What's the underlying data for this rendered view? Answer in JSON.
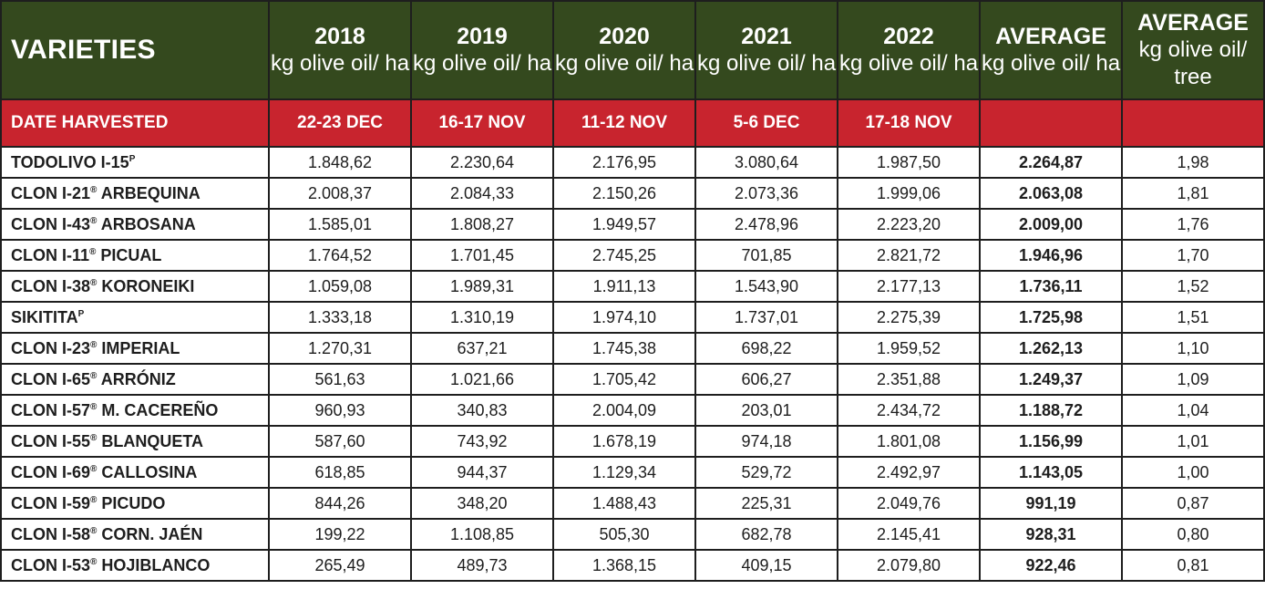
{
  "header": {
    "first": "VARIETIES",
    "columns": [
      {
        "year": "2018",
        "unit": "kg olive oil/ ha"
      },
      {
        "year": "2019",
        "unit": "kg olive oil/ ha"
      },
      {
        "year": "2020",
        "unit": "kg olive oil/ ha"
      },
      {
        "year": "2021",
        "unit": "kg olive oil/ ha"
      },
      {
        "year": "2022",
        "unit": "kg olive oil/ ha"
      },
      {
        "year": "AVERAGE",
        "unit": "kg olive oil/ ha"
      },
      {
        "year": "AVERAGE",
        "unit": "kg olive oil/ tree"
      }
    ]
  },
  "harvest": {
    "label": "DATE HARVESTED",
    "dates": [
      "22-23 DEC",
      "16-17 NOV",
      "11-12 NOV",
      "5-6 DEC",
      "17-18 NOV",
      "",
      ""
    ]
  },
  "colors": {
    "header_bg": "#34491e",
    "harvest_bg": "#c8242e"
  },
  "rows": [
    {
      "prefix": "TODOLIVO I-15",
      "mark": "P",
      "suffix": "",
      "values": [
        "1.848,62",
        "2.230,64",
        "2.176,95",
        "3.080,64",
        "1.987,50",
        "2.264,87",
        "1,98"
      ]
    },
    {
      "prefix": "CLON I-21",
      "mark": "®",
      "suffix": " ARBEQUINA",
      "values": [
        "2.008,37",
        "2.084,33",
        "2.150,26",
        "2.073,36",
        "1.999,06",
        "2.063,08",
        "1,81"
      ]
    },
    {
      "prefix": "CLON I-43",
      "mark": "®",
      "suffix": " ARBOSANA",
      "values": [
        "1.585,01",
        "1.808,27",
        "1.949,57",
        "2.478,96",
        "2.223,20",
        "2.009,00",
        "1,76"
      ]
    },
    {
      "prefix": "CLON I-11",
      "mark": "®",
      "suffix": " PICUAL",
      "values": [
        "1.764,52",
        "1.701,45",
        "2.745,25",
        "701,85",
        "2.821,72",
        "1.946,96",
        "1,70"
      ]
    },
    {
      "prefix": "CLON I-38",
      "mark": "®",
      "suffix": " KORONEIKI",
      "values": [
        "1.059,08",
        "1.989,31",
        "1.911,13",
        "1.543,90",
        "2.177,13",
        "1.736,11",
        "1,52"
      ]
    },
    {
      "prefix": "SIKITITA",
      "mark": "P",
      "suffix": "",
      "values": [
        "1.333,18",
        "1.310,19",
        "1.974,10",
        "1.737,01",
        "2.275,39",
        "1.725,98",
        "1,51"
      ]
    },
    {
      "prefix": "CLON I-23",
      "mark": "®",
      "suffix": " IMPERIAL",
      "values": [
        "1.270,31",
        "637,21",
        "1.745,38",
        "698,22",
        "1.959,52",
        "1.262,13",
        "1,10"
      ]
    },
    {
      "prefix": "CLON I-65",
      "mark": "®",
      "suffix": " ARRÓNIZ",
      "values": [
        "561,63",
        "1.021,66",
        "1.705,42",
        "606,27",
        "2.351,88",
        "1.249,37",
        "1,09"
      ]
    },
    {
      "prefix": "CLON I-57",
      "mark": "®",
      "suffix": " M. CACEREÑO",
      "values": [
        "960,93",
        "340,83",
        "2.004,09",
        "203,01",
        "2.434,72",
        "1.188,72",
        "1,04"
      ]
    },
    {
      "prefix": "CLON I-55",
      "mark": "®",
      "suffix": " BLANQUETA",
      "values": [
        "587,60",
        "743,92",
        "1.678,19",
        "974,18",
        "1.801,08",
        "1.156,99",
        "1,01"
      ]
    },
    {
      "prefix": "CLON I-69",
      "mark": "®",
      "suffix": " CALLOSINA",
      "values": [
        "618,85",
        "944,37",
        "1.129,34",
        "529,72",
        "2.492,97",
        "1.143,05",
        "1,00"
      ]
    },
    {
      "prefix": "CLON I-59",
      "mark": "®",
      "suffix": " PICUDO",
      "values": [
        "844,26",
        "348,20",
        "1.488,43",
        "225,31",
        "2.049,76",
        "991,19",
        "0,87"
      ]
    },
    {
      "prefix": "CLON I-58",
      "mark": "®",
      "suffix": " CORN. JAÉN",
      "values": [
        "199,22",
        "1.108,85",
        "505,30",
        "682,78",
        "2.145,41",
        "928,31",
        "0,80"
      ]
    },
    {
      "prefix": "CLON I-53",
      "mark": "®",
      "suffix": " HOJIBLANCO",
      "values": [
        "265,49",
        "489,73",
        "1.368,15",
        "409,15",
        "2.079,80",
        "922,46",
        "0,81"
      ]
    }
  ]
}
